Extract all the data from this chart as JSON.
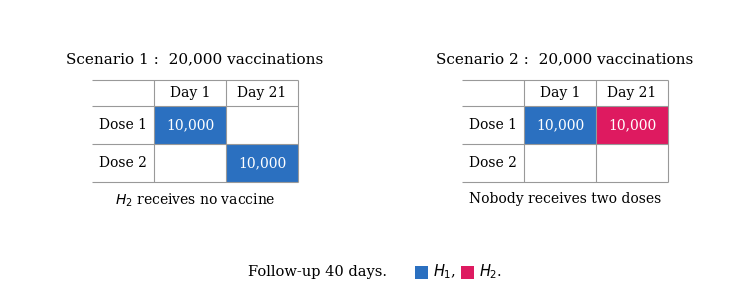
{
  "bg_color": "#ffffff",
  "blue_color": "#2b70c0",
  "pink_color": "#de1a60",
  "table_line_color": "#999999",
  "text_color": "#000000",
  "white_text": "#ffffff",
  "fig_w": 7.54,
  "fig_h": 3.0,
  "dpi": 100,
  "scenario1": {
    "title": "Scenario 1 :  20,000 vaccinations",
    "col_headers": [
      "Day 1",
      "Day 21"
    ],
    "row_headers": [
      "Dose 1",
      "Dose 2"
    ],
    "cells": [
      [
        "10,000",
        ""
      ],
      [
        "",
        "10,000"
      ]
    ],
    "cell_colors": [
      [
        "blue",
        "white"
      ],
      [
        "white",
        "blue"
      ]
    ],
    "subtitle": "$H_2$ receives no vaccine"
  },
  "scenario2": {
    "title": "Scenario 2 :  20,000 vaccinations",
    "col_headers": [
      "Day 1",
      "Day 21"
    ],
    "row_headers": [
      "Dose 1",
      "Dose 2"
    ],
    "cells": [
      [
        "10,000",
        "10,000"
      ],
      [
        "",
        ""
      ]
    ],
    "cell_colors": [
      [
        "blue",
        "pink"
      ],
      [
        "white",
        "white"
      ]
    ],
    "subtitle": "Nobody receives two doses"
  },
  "footer_text": "Follow-up 40 days.",
  "legend_h1": "$H_1$,",
  "legend_h2": "$H_2$."
}
